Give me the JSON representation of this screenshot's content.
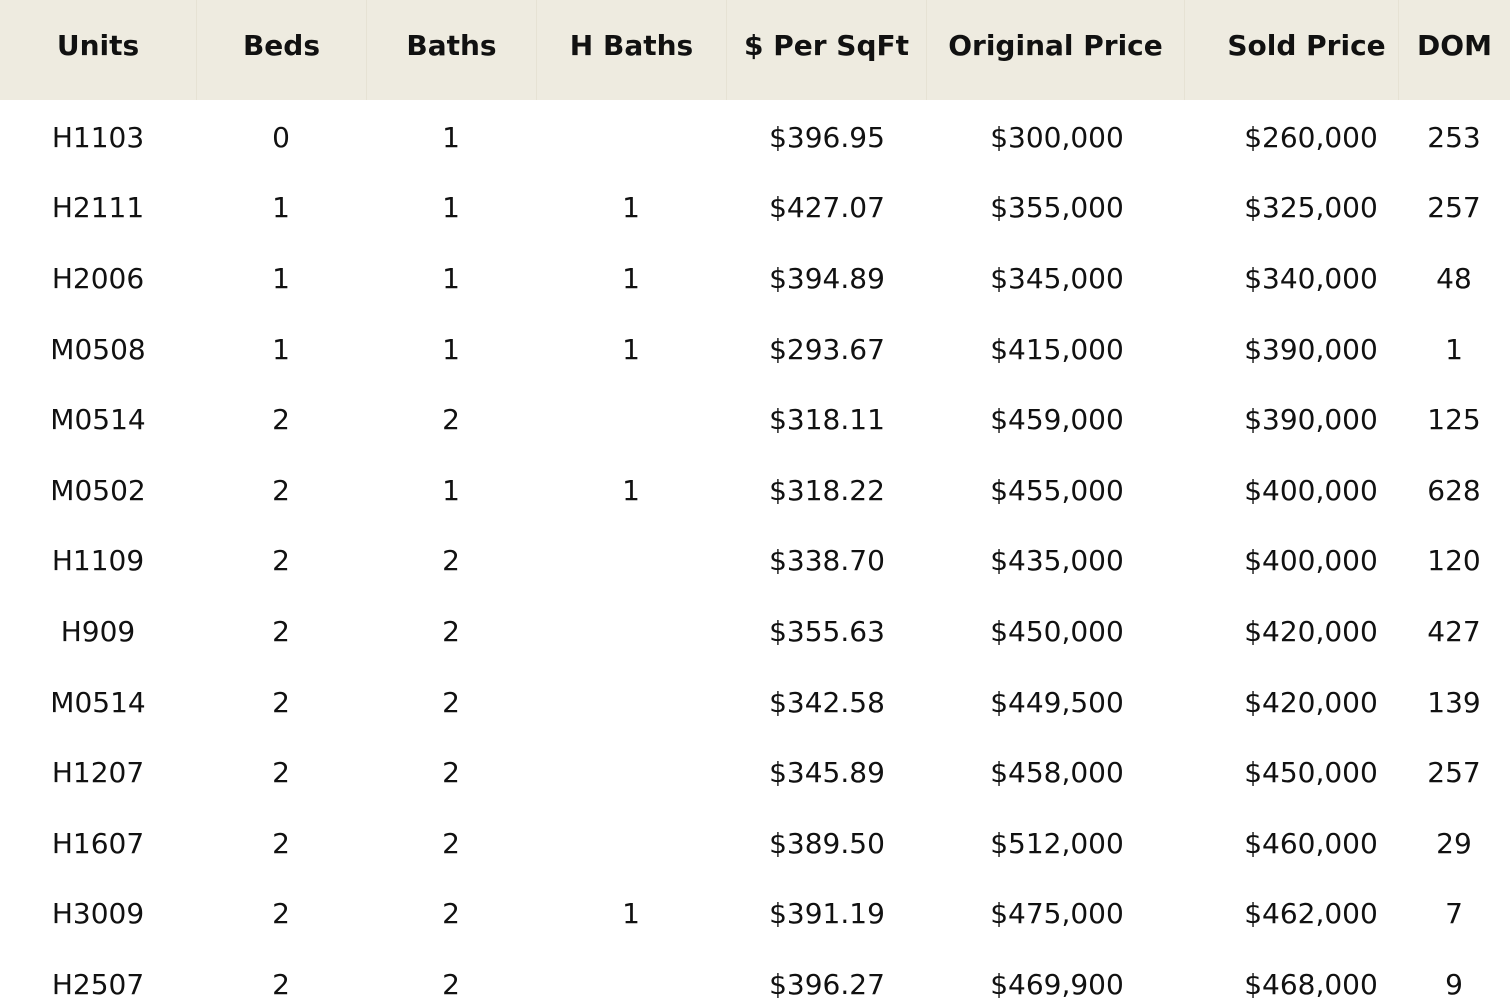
{
  "table": {
    "headers": [
      "Units",
      "Beds",
      "Baths",
      "H Baths",
      "$ Per SqFt",
      "Original Price",
      "Sold Price",
      "DOM"
    ],
    "rows": [
      [
        "H1103",
        "0",
        "1",
        "",
        "$396.95",
        "$300,000",
        "$260,000",
        "253"
      ],
      [
        "H2111",
        "1",
        "1",
        "1",
        "$427.07",
        "$355,000",
        "$325,000",
        "257"
      ],
      [
        "H2006",
        "1",
        "1",
        "1",
        "$394.89",
        "$345,000",
        "$340,000",
        "48"
      ],
      [
        "M0508",
        "1",
        "1",
        "1",
        "$293.67",
        "$415,000",
        "$390,000",
        "1"
      ],
      [
        "M0514",
        "2",
        "2",
        "",
        "$318.11",
        "$459,000",
        "$390,000",
        "125"
      ],
      [
        "M0502",
        "2",
        "1",
        "1",
        "$318.22",
        "$455,000",
        "$400,000",
        "628"
      ],
      [
        "H1109",
        "2",
        "2",
        "",
        "$338.70",
        "$435,000",
        "$400,000",
        "120"
      ],
      [
        "H909",
        "2",
        "2",
        "",
        "$355.63",
        "$450,000",
        "$420,000",
        "427"
      ],
      [
        "M0514",
        "2",
        "2",
        "",
        "$342.58",
        "$449,500",
        "$420,000",
        "139"
      ],
      [
        "H1207",
        "2",
        "2",
        "",
        "$345.89",
        "$458,000",
        "$450,000",
        "257"
      ],
      [
        "H1607",
        "2",
        "2",
        "",
        "$389.50",
        "$512,000",
        "$460,000",
        "29"
      ],
      [
        "H3009",
        "2",
        "2",
        "1",
        "$391.19",
        "$475,000",
        "$462,000",
        "7"
      ],
      [
        "H2507",
        "2",
        "2",
        "",
        "$396.27",
        "$469,900",
        "$468,000",
        "9"
      ]
    ]
  },
  "colors": {
    "header_background": "#eeebe0",
    "text": "#111111",
    "body_background": "#ffffff"
  }
}
